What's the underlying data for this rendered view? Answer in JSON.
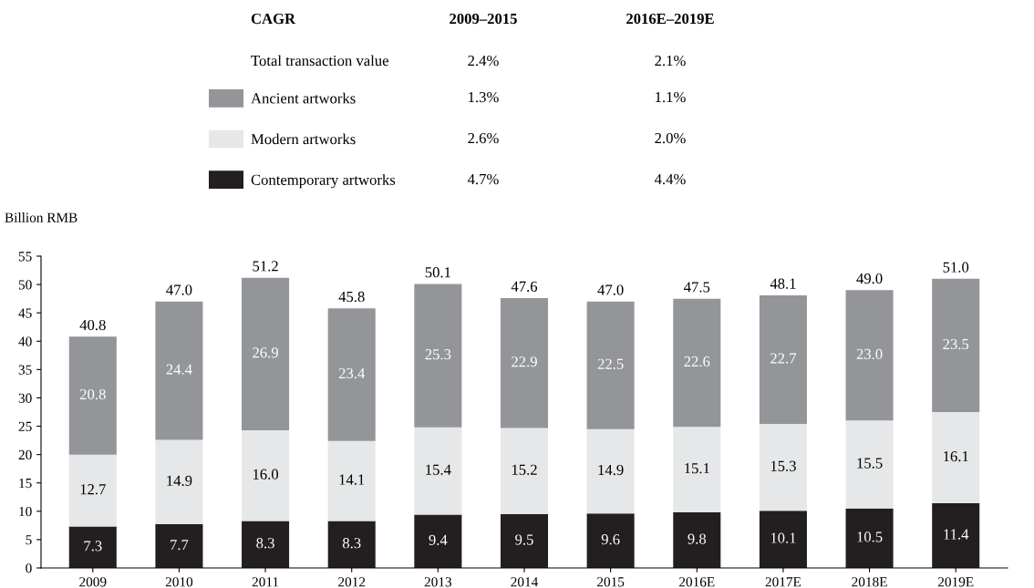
{
  "chart_data": {
    "type": "bar",
    "stacked": true,
    "ylabel": "Billion RMB",
    "categories": [
      "2009",
      "2010",
      "2011",
      "2012",
      "2013",
      "2014",
      "2015",
      "2016E",
      "2017E",
      "2018E",
      "2019E"
    ],
    "series": [
      {
        "name": "Contemporary artworks",
        "color": "#231f20",
        "values": [
          7.3,
          7.7,
          8.3,
          8.3,
          9.4,
          9.5,
          9.6,
          9.8,
          10.1,
          10.5,
          11.4
        ]
      },
      {
        "name": "Modern artworks",
        "color": "#e6e7e8",
        "values": [
          12.7,
          14.9,
          16.0,
          14.1,
          15.4,
          15.2,
          14.9,
          15.1,
          15.3,
          15.5,
          16.1
        ],
        "value_labels": [
          "12.7",
          "14.9",
          "16.0",
          "14.1",
          "15.4",
          "15.2",
          "14.9",
          "15.1",
          "15.3",
          "15.5",
          "16.1"
        ]
      },
      {
        "name": "Ancient artworks",
        "color": "#939598",
        "values": [
          20.8,
          24.4,
          26.9,
          23.4,
          25.3,
          22.9,
          22.5,
          22.6,
          22.7,
          23.0,
          23.5
        ],
        "value_labels": [
          "20.8",
          "24.4",
          "26.9",
          "23.4",
          "25.3",
          "22.9",
          "22.5",
          "22.6",
          "22.7",
          "23.0",
          "23.5"
        ]
      }
    ],
    "totals": [
      "40.8",
      "47.0",
      "51.2",
      "45.8",
      "50.1",
      "47.6",
      "47.0",
      "47.5",
      "48.1",
      "49.0",
      "51.0"
    ],
    "data_labels": true,
    "ylim": [
      0,
      55
    ],
    "yticks": [
      0,
      5,
      10,
      15,
      20,
      25,
      30,
      35,
      40,
      45,
      50,
      55
    ],
    "grid": false,
    "legend": "top",
    "annotations": [
      "CAGR",
      "2009–2015",
      "2016E–2019E",
      "Total transaction value",
      "2.4%",
      "2.1%",
      "1.3%",
      "1.1%",
      "2.6%",
      "2.0%",
      "4.7%",
      "4.4%"
    ]
  }
}
